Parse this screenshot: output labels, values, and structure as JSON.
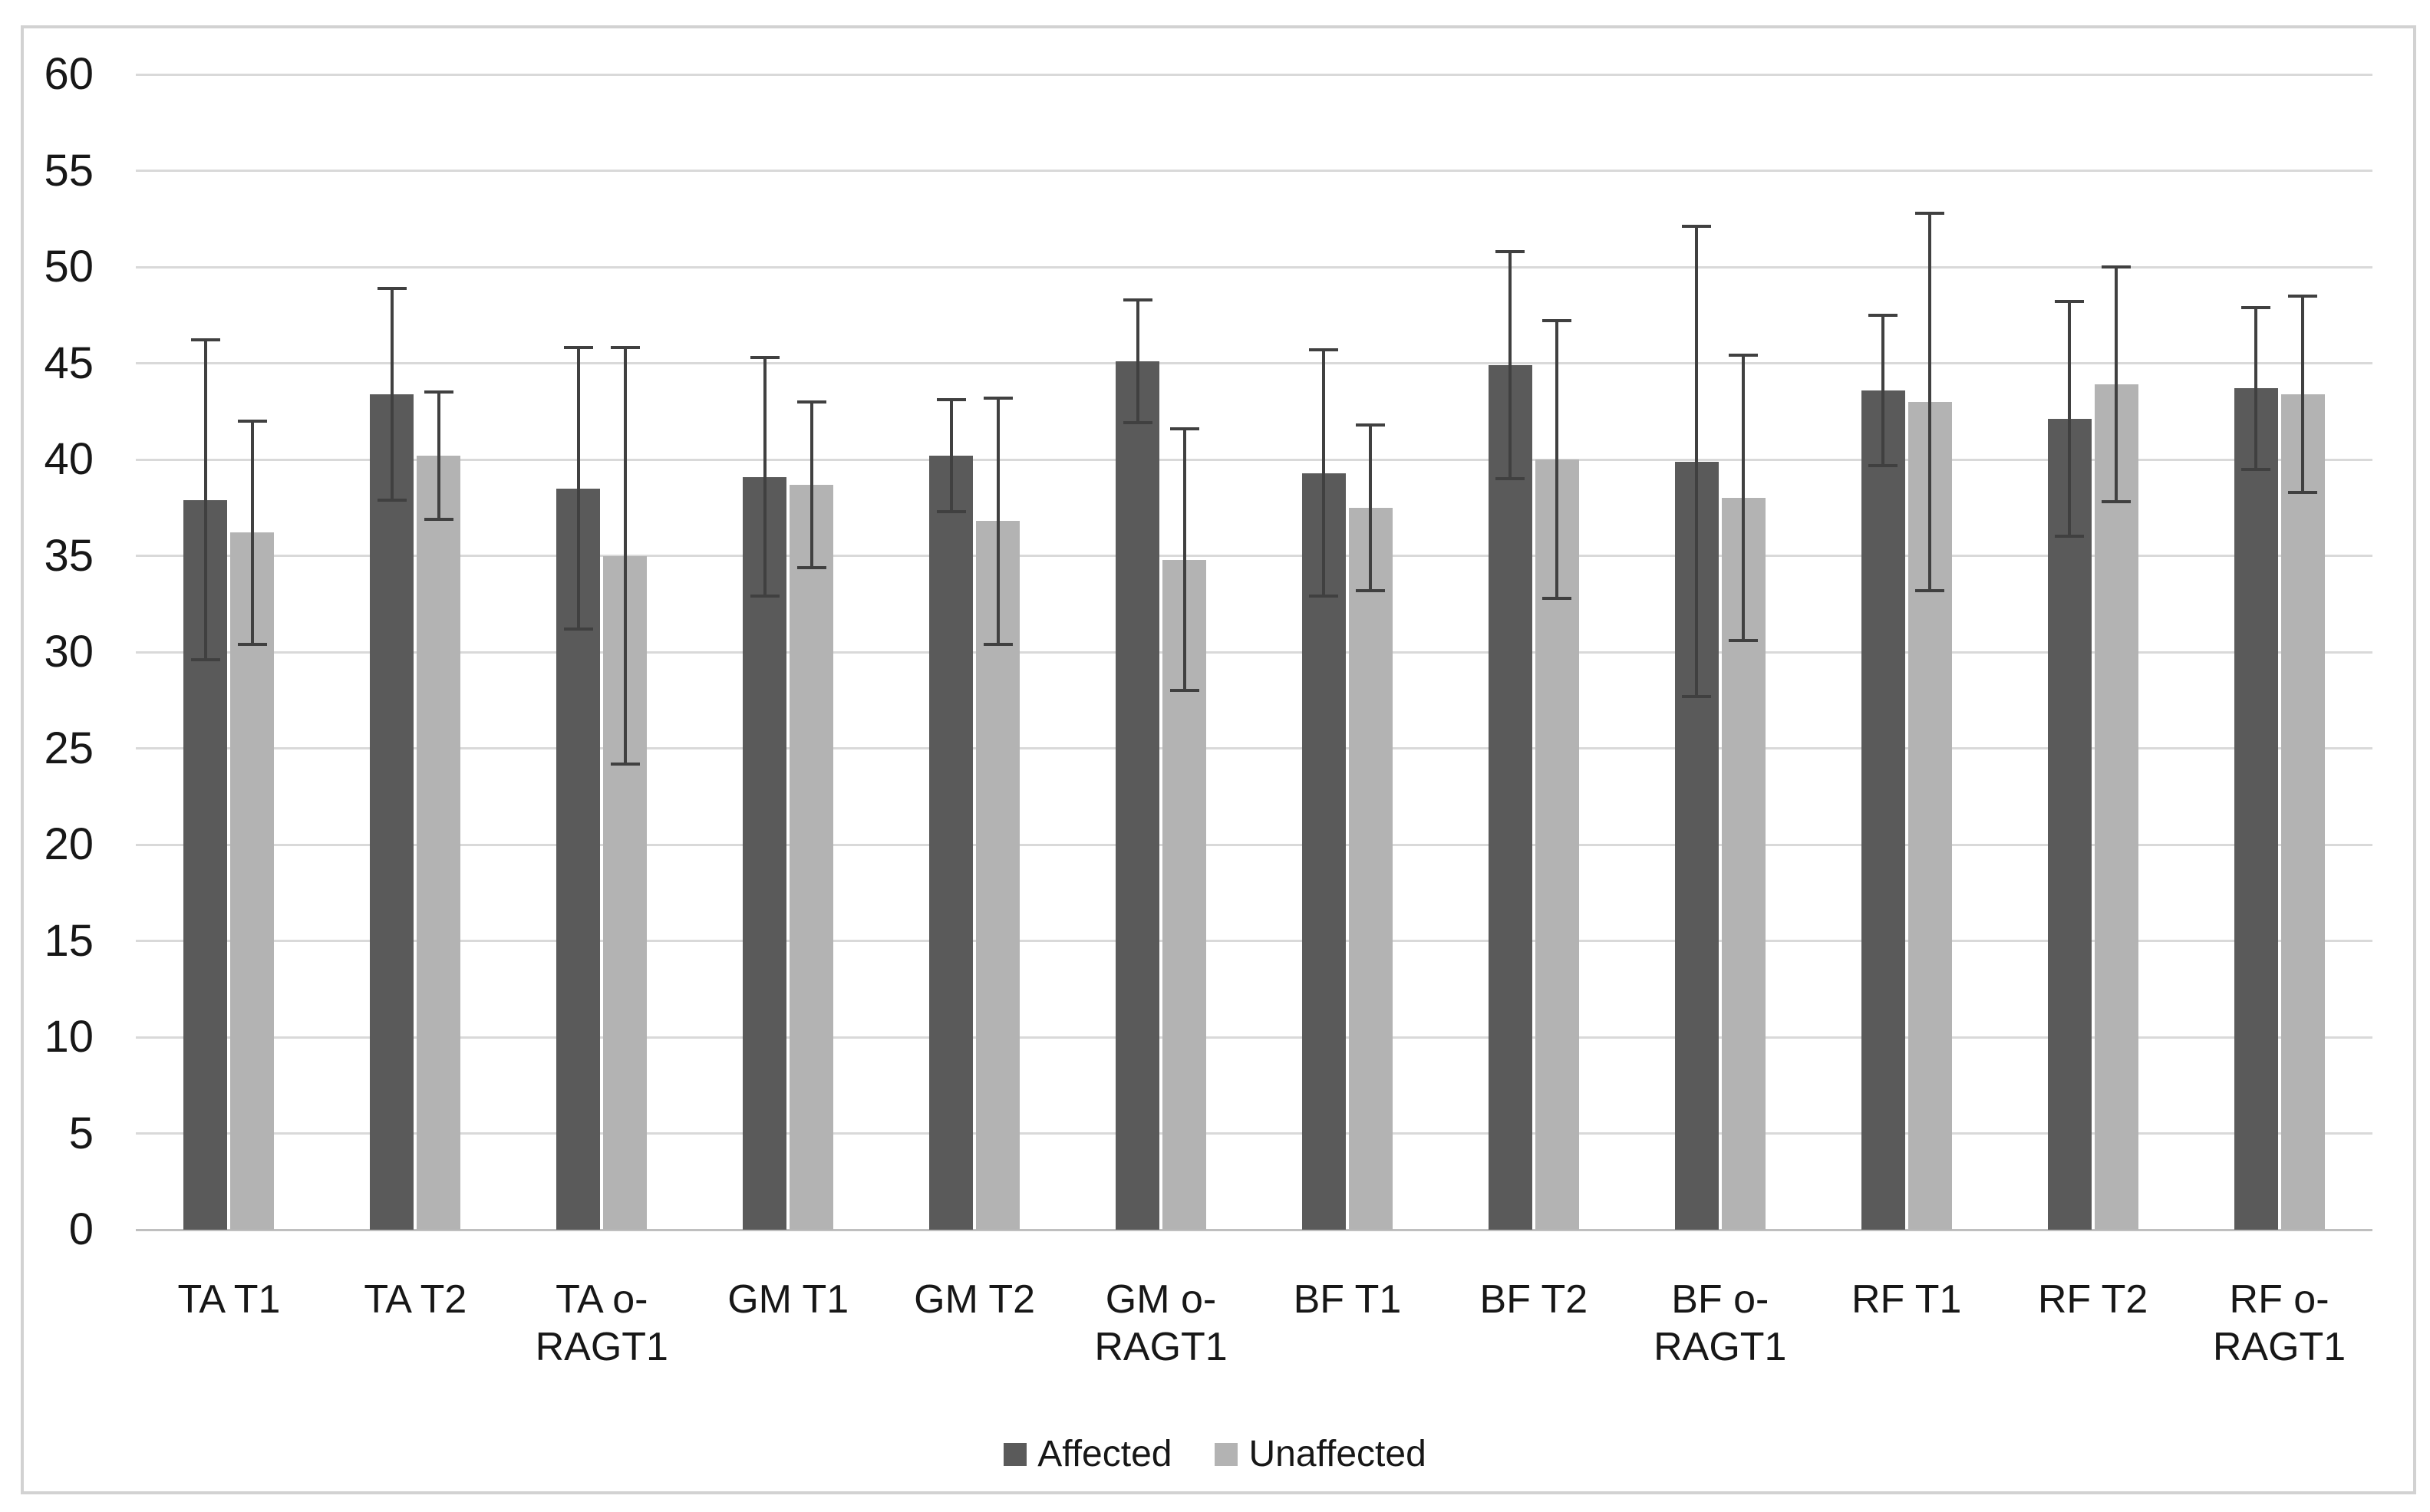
{
  "figure": {
    "background": "#ffffff",
    "frame_border_color": "#d2d2d2"
  },
  "chart_data": {
    "type": "bar",
    "title": "",
    "xlabel": "",
    "ylabel": "",
    "ylim": [
      0,
      60
    ],
    "ytick_step": 5,
    "yticks": [
      "0",
      "5",
      "10",
      "15",
      "20",
      "25",
      "30",
      "35",
      "40",
      "45",
      "50",
      "55",
      "60"
    ],
    "grid": true,
    "gridline_color": "#d9d9d9",
    "axis_line_color": "#bfbfbf",
    "error_bar_color": "#404040",
    "text_color": "#171717",
    "legend_position": "bottom",
    "categories": [
      "TA T1",
      "TA T2",
      "TA o-RAGT1",
      "GM T1",
      "GM T2",
      "GM o-RAGT1",
      "BF T1",
      "BF T2",
      "BF o-RAGT1",
      "RF T1",
      "RF T2",
      "RF o-RAGT1"
    ],
    "category_label_lines": [
      [
        "TA T1"
      ],
      [
        "TA T2"
      ],
      [
        "TA o-",
        "RAGT1"
      ],
      [
        "GM T1"
      ],
      [
        "GM T2"
      ],
      [
        "GM o-",
        "RAGT1"
      ],
      [
        "BF T1"
      ],
      [
        "BF T2"
      ],
      [
        "BF o-",
        "RAGT1"
      ],
      [
        "RF T1"
      ],
      [
        "RF T2"
      ],
      [
        "RF o-",
        "RAGT1"
      ]
    ],
    "series": [
      {
        "name": "Affected",
        "color": "#5a5a5a",
        "values": [
          37.9,
          43.4,
          38.5,
          39.1,
          40.2,
          45.1,
          39.3,
          44.9,
          39.9,
          43.6,
          42.1,
          43.7
        ],
        "errors": [
          8.3,
          5.5,
          7.3,
          6.2,
          2.9,
          3.2,
          6.4,
          5.9,
          12.2,
          3.9,
          6.1,
          4.2
        ]
      },
      {
        "name": "Unaffected",
        "color": "#b3b3b3",
        "values": [
          36.2,
          40.2,
          35.0,
          38.7,
          36.8,
          34.8,
          37.5,
          40.0,
          38.0,
          43.0,
          43.9,
          43.4
        ],
        "errors": [
          5.8,
          3.3,
          10.8,
          4.3,
          6.4,
          6.8,
          4.3,
          7.2,
          7.4,
          9.8,
          6.1,
          5.1
        ]
      }
    ]
  }
}
